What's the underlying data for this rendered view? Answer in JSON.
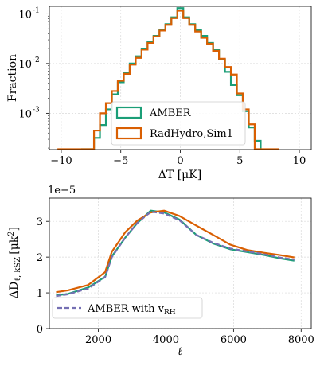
{
  "chart_data": [
    {
      "type": "histogram",
      "ylabel": "Fraction",
      "xlabel": "ΔT [μK]",
      "xlim": [
        -11,
        11
      ],
      "ylim_log10": [
        -3.73,
        -0.85
      ],
      "yscale": "log",
      "xticks": [
        -10,
        -5,
        0,
        5,
        10
      ],
      "xtick_labels": [
        "−10",
        "−5",
        "0",
        "5",
        "10"
      ],
      "yticks": [
        0.001,
        0.01,
        0.1
      ],
      "ytick_labels": [
        "10",
        "10",
        "10"
      ],
      "ytick_exponents": [
        "-3",
        "-2",
        "-1"
      ],
      "grid": true,
      "legend_position": "lower center",
      "bin_width": 0.5,
      "series": [
        {
          "name": "AMBER",
          "color": "#1b9e77",
          "bins": [
            [
              -8.0,
              0.00019
            ],
            [
              -7.5,
              0.00019
            ],
            [
              -7.0,
              0.00032
            ],
            [
              -6.5,
              0.00058
            ],
            [
              -6.0,
              0.0012
            ],
            [
              -5.5,
              0.0024
            ],
            [
              -5.0,
              0.0042
            ],
            [
              -4.5,
              0.0065
            ],
            [
              -4.0,
              0.01
            ],
            [
              -3.5,
              0.014
            ],
            [
              -3.0,
              0.02
            ],
            [
              -2.5,
              0.027
            ],
            [
              -2.0,
              0.036
            ],
            [
              -1.5,
              0.047
            ],
            [
              -1.0,
              0.062
            ],
            [
              -0.5,
              0.085
            ],
            [
              0.0,
              0.13
            ],
            [
              0.5,
              0.085
            ],
            [
              1.0,
              0.062
            ],
            [
              1.5,
              0.047
            ],
            [
              2.0,
              0.036
            ],
            [
              2.5,
              0.026
            ],
            [
              3.0,
              0.019
            ],
            [
              3.5,
              0.012
            ],
            [
              4.0,
              0.0068
            ],
            [
              4.5,
              0.0037
            ],
            [
              5.0,
              0.0023
            ],
            [
              5.5,
              0.0011
            ],
            [
              6.0,
              0.00052
            ],
            [
              6.5,
              0.00028
            ]
          ]
        },
        {
          "name": "RadHydro,Sim1",
          "color": "#d95f02",
          "bins": [
            [
              -10.0,
              0.00019
            ],
            [
              -9.5,
              0.00019
            ],
            [
              -9.0,
              0.00019
            ],
            [
              -8.5,
              0.00019
            ],
            [
              -8.0,
              0.00019
            ],
            [
              -7.5,
              0.00019
            ],
            [
              -7.0,
              0.00045
            ],
            [
              -6.5,
              0.001
            ],
            [
              -6.0,
              0.0016
            ],
            [
              -5.5,
              0.0028
            ],
            [
              -5.0,
              0.0045
            ],
            [
              -4.5,
              0.0062
            ],
            [
              -4.0,
              0.0095
            ],
            [
              -3.5,
              0.013
            ],
            [
              -3.0,
              0.019
            ],
            [
              -2.5,
              0.026
            ],
            [
              -2.0,
              0.035
            ],
            [
              -1.5,
              0.046
            ],
            [
              -1.0,
              0.06
            ],
            [
              -0.5,
              0.082
            ],
            [
              0.0,
              0.115
            ],
            [
              0.5,
              0.082
            ],
            [
              1.0,
              0.06
            ],
            [
              1.5,
              0.044
            ],
            [
              2.0,
              0.033
            ],
            [
              2.5,
              0.025
            ],
            [
              3.0,
              0.018
            ],
            [
              3.5,
              0.0125
            ],
            [
              4.0,
              0.0085
            ],
            [
              4.5,
              0.006
            ],
            [
              5.0,
              0.0025
            ],
            [
              5.5,
              0.0012
            ],
            [
              6.0,
              0.0006
            ],
            [
              6.5,
              0.00019
            ],
            [
              7.0,
              0.00019
            ],
            [
              7.5,
              0.00019
            ],
            [
              8.0,
              0.00019
            ]
          ]
        }
      ]
    },
    {
      "type": "line",
      "ylabel": "ΔD",
      "ylabel_sub": "ℓ, kSZ",
      "ylabel_unit": "[μk",
      "ylabel_unit_sup": "2",
      "ylabel_unit_end": "]",
      "xlabel": "ℓ",
      "offset_label": "1e−5",
      "xlim": [
        550,
        8300
      ],
      "ylim": [
        0,
        3.65
      ],
      "y_scale_factor": 1e-05,
      "xticks": [
        2000,
        4000,
        6000,
        8000
      ],
      "xtick_labels": [
        "2000",
        "4000",
        "6000",
        "8000"
      ],
      "yticks": [
        0,
        1,
        2,
        3
      ],
      "ytick_labels": [
        "0",
        "1",
        "2",
        "3"
      ],
      "grid": true,
      "legend_position": "lower left",
      "x": [
        750,
        1100,
        1700,
        2200,
        2400,
        2800,
        3150,
        3550,
        3950,
        4400,
        4900,
        5400,
        5900,
        6400,
        6900,
        7350,
        7800
      ],
      "series": [
        {
          "name": "",
          "color": "#1b9e77",
          "style": "solid",
          "values": [
            0.93,
            0.97,
            1.15,
            1.45,
            2.02,
            2.55,
            2.95,
            3.3,
            3.25,
            3.05,
            2.62,
            2.38,
            2.22,
            2.14,
            2.06,
            1.97,
            1.9
          ]
        },
        {
          "name": "",
          "color": "#d95f02",
          "style": "solid",
          "values": [
            1.02,
            1.07,
            1.22,
            1.58,
            2.15,
            2.7,
            3.02,
            3.25,
            3.3,
            3.15,
            2.88,
            2.62,
            2.35,
            2.2,
            2.12,
            2.06,
            1.99
          ]
        },
        {
          "name": "AMBER with v",
          "name_sub": "RH",
          "color": "#7570b3",
          "style": "dashed",
          "values": [
            0.91,
            0.96,
            1.12,
            1.44,
            2.0,
            2.55,
            2.95,
            3.27,
            3.22,
            3.03,
            2.62,
            2.4,
            2.24,
            2.16,
            2.08,
            1.99,
            1.93
          ]
        }
      ]
    }
  ]
}
